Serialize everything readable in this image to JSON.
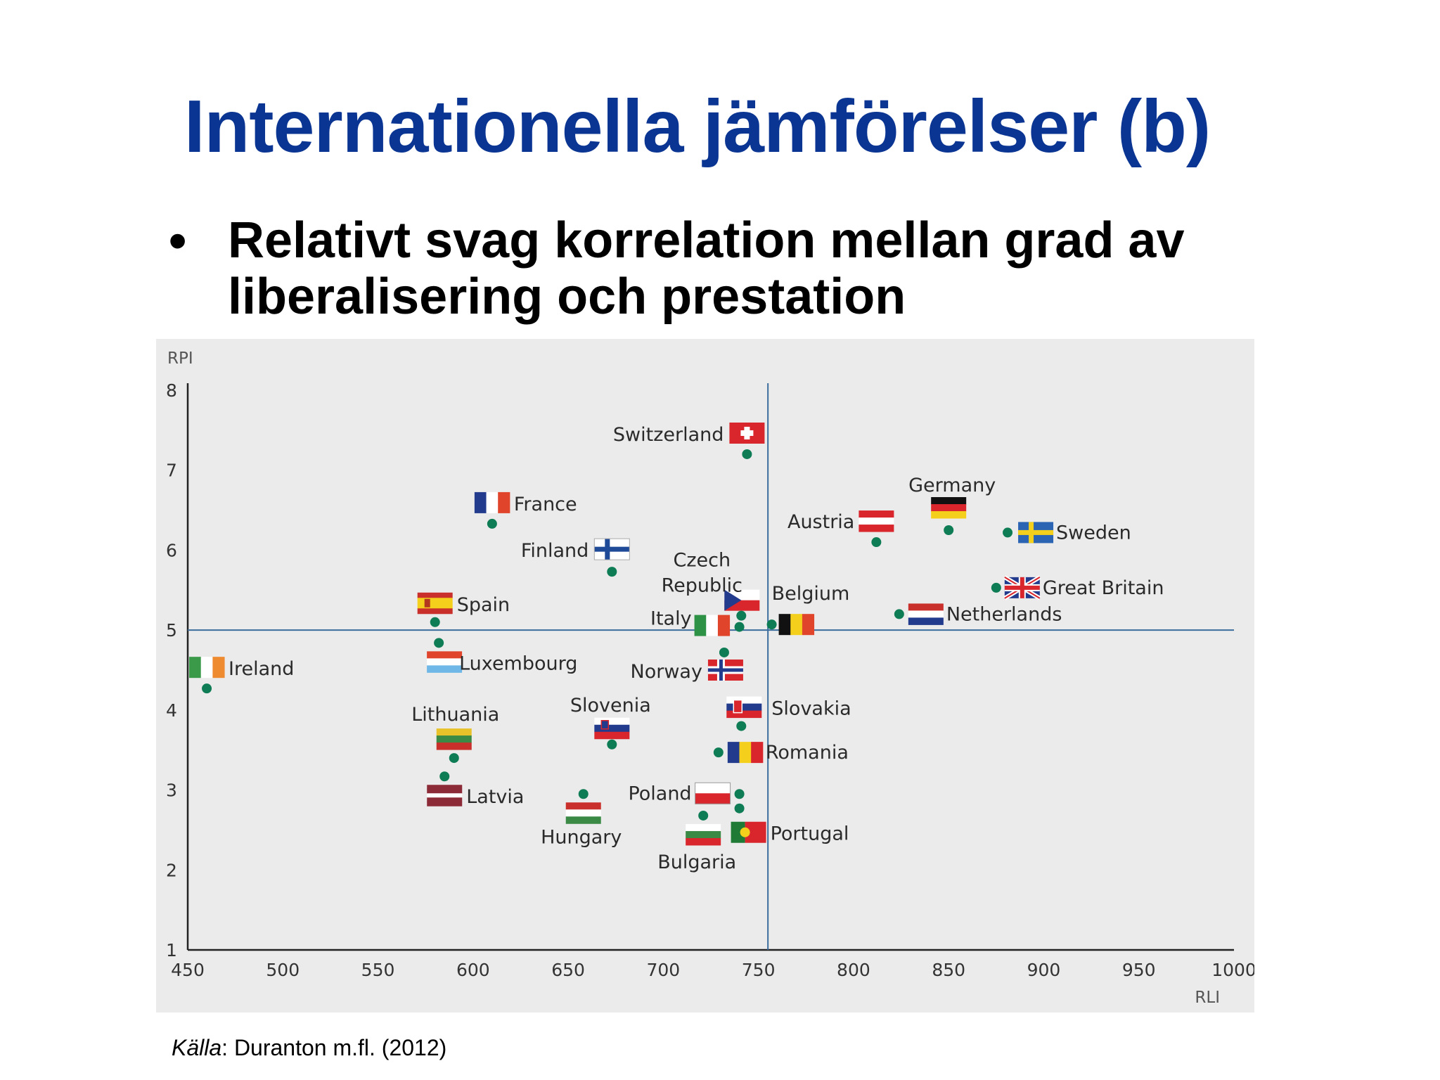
{
  "slide": {
    "title": "Internationella jämförelser (b)",
    "bullet_symbol": "•",
    "bullet_line1": "Relativt svag korrelation mellan grad av",
    "bullet_line2": "liberalisering och prestation",
    "source_label": "Källa",
    "source_text": ": Duranton m.fl. (2012)"
  },
  "chart_data": {
    "type": "scatter",
    "xlabel": "RLI",
    "ylabel": "RPI",
    "xlim": [
      450,
      1000
    ],
    "ylim": [
      1,
      8
    ],
    "x_ticks": [
      450,
      500,
      550,
      600,
      650,
      700,
      750,
      800,
      850,
      900,
      950,
      1000
    ],
    "y_ticks": [
      1,
      2,
      3,
      4,
      5,
      6,
      7,
      8
    ],
    "reference_lines": {
      "x": 755,
      "y": 5
    },
    "grid": false,
    "point_color": "#0e7c54",
    "points": [
      {
        "label": "Switzerland",
        "x": 744,
        "y": 7.2,
        "flag": "switzerland-flag"
      },
      {
        "label": "France",
        "x": 610,
        "y": 6.33,
        "flag": "france-flag"
      },
      {
        "label": "Finland",
        "x": 673,
        "y": 5.73,
        "flag": "finland-flag"
      },
      {
        "label": "Czech Republic",
        "x": 741,
        "y": 5.18,
        "flag": "czech-republic-flag"
      },
      {
        "label": "Austria",
        "x": 812,
        "y": 6.1,
        "flag": "austria-flag"
      },
      {
        "label": "Germany",
        "x": 850,
        "y": 6.25,
        "flag": "germany-flag"
      },
      {
        "label": "Sweden",
        "x": 881,
        "y": 6.22,
        "flag": "sweden-flag"
      },
      {
        "label": "Great Britain",
        "x": 875,
        "y": 5.53,
        "flag": "great-britain-flag"
      },
      {
        "label": "Netherlands",
        "x": 824,
        "y": 5.2,
        "flag": "netherlands-flag"
      },
      {
        "label": "Belgium",
        "x": 757,
        "y": 5.07,
        "flag": "belgium-flag"
      },
      {
        "label": "Italy",
        "x": 740,
        "y": 5.04,
        "flag": "italy-flag"
      },
      {
        "label": "Spain",
        "x": 580,
        "y": 5.1,
        "flag": "spain-flag"
      },
      {
        "label": "Luxembourg",
        "x": 582,
        "y": 4.84,
        "flag": "luxembourg-flag"
      },
      {
        "label": "Ireland",
        "x": 460,
        "y": 4.27,
        "flag": "ireland-flag"
      },
      {
        "label": "Norway",
        "x": 732,
        "y": 4.72,
        "flag": "norway-flag"
      },
      {
        "label": "Slovakia",
        "x": 741,
        "y": 3.8,
        "flag": "slovakia-flag"
      },
      {
        "label": "Slovenia",
        "x": 673,
        "y": 3.57,
        "flag": "slovenia-flag"
      },
      {
        "label": "Lithuania",
        "x": 590,
        "y": 3.4,
        "flag": "lithuania-flag"
      },
      {
        "label": "Latvia",
        "x": 585,
        "y": 3.17,
        "flag": "latvia-flag"
      },
      {
        "label": "Romania",
        "x": 729,
        "y": 3.47,
        "flag": "romania-flag"
      },
      {
        "label": "Poland",
        "x": 740,
        "y": 2.95,
        "flag": "poland-flag"
      },
      {
        "label": "Hungary",
        "x": 658,
        "y": 2.95,
        "flag": "hungary-flag"
      },
      {
        "label": "Bulgaria",
        "x": 721,
        "y": 2.68,
        "flag": "bulgaria-flag"
      },
      {
        "label": "Portugal",
        "x": 740,
        "y": 2.77,
        "flag": "portugal-flag"
      }
    ]
  }
}
